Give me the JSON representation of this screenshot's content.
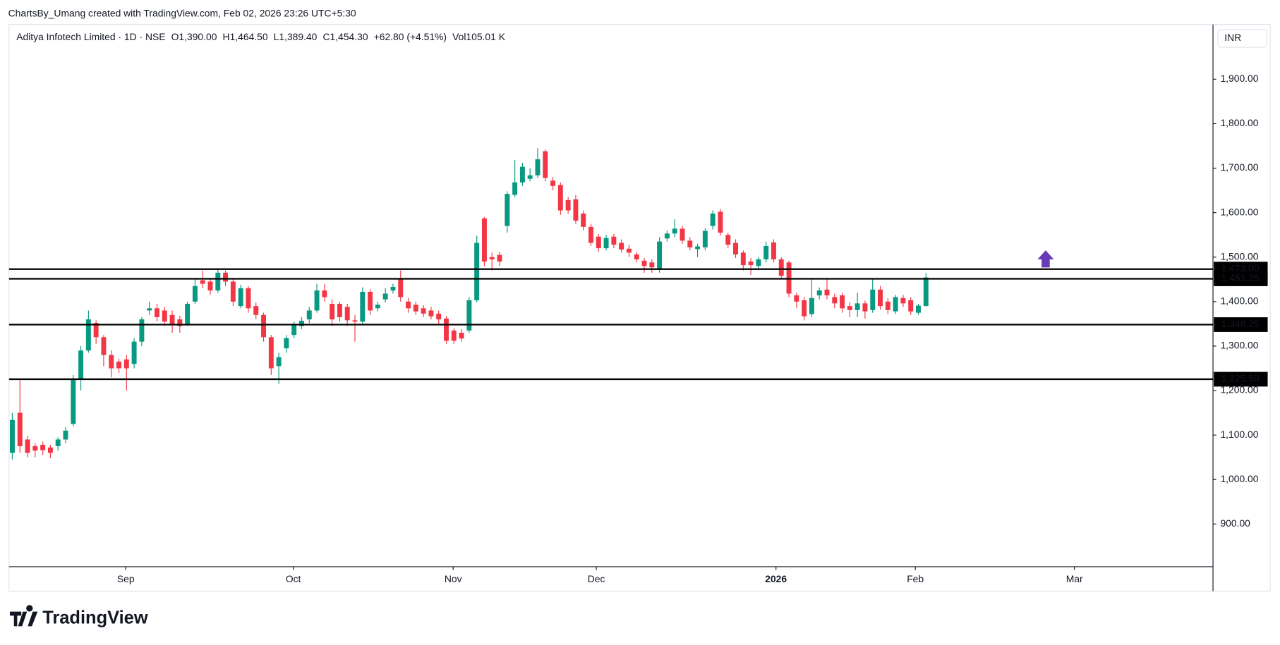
{
  "watermark": "ChartsBy_Umang created with TradingView.com, Feb 02, 2026 23:26 UTC+5:30",
  "brand": "TradingView",
  "chart_data": {
    "type": "candlestick",
    "legend": {
      "symbol": "Aditya Infotech Limited · 1D · NSE",
      "o_label": "O",
      "o": "1,390.00",
      "h_label": "H",
      "h": "1,464.50",
      "l_label": "L",
      "l": "1,389.40",
      "c_label": "C",
      "c": "1,454.30",
      "change": "+62.80 (+4.51%)",
      "vol_label": "Vol",
      "vol": "105.01 K"
    },
    "currency": "INR",
    "up_color": "#089981",
    "down_color": "#f23645",
    "open": [
      1060,
      1150,
      1090,
      1075,
      1078,
      1072,
      1075,
      1090,
      1125,
      1225,
      1290,
      1352,
      1320,
      1280,
      1265,
      1270,
      1260,
      1310,
      1380,
      1385,
      1380,
      1370,
      1360,
      1350,
      1400,
      1448,
      1445,
      1425,
      1465,
      1445,
      1390,
      1430,
      1390,
      1370,
      1320,
      1255,
      1295,
      1325,
      1345,
      1360,
      1380,
      1425,
      1395,
      1395,
      1388,
      1358,
      1355,
      1422,
      1385,
      1405,
      1425,
      1450,
      1400,
      1393,
      1385,
      1380,
      1373,
      1362,
      1335,
      1330,
      1335,
      1403,
      1587,
      1500,
      1505,
      1570,
      1640,
      1668,
      1676,
      1684,
      1738,
      1672,
      1662,
      1628,
      1630,
      1598,
      1568,
      1546,
      1520,
      1546,
      1532,
      1519,
      1506,
      1492,
      1488,
      1473,
      1542,
      1553,
      1564,
      1537,
      1518,
      1522,
      1570,
      1602,
      1550,
      1532,
      1510,
      1490,
      1480,
      1495,
      1533,
      1495,
      1488,
      1414,
      1403,
      1372,
      1414,
      1427,
      1410,
      1414,
      1390,
      1381,
      1396,
      1381,
      1427,
      1400,
      1378,
      1408,
      1403,
      1375,
      1390
    ],
    "high": [
      1150,
      1225,
      1098,
      1082,
      1085,
      1078,
      1095,
      1118,
      1235,
      1300,
      1380,
      1358,
      1325,
      1290,
      1272,
      1280,
      1318,
      1365,
      1400,
      1395,
      1388,
      1380,
      1368,
      1400,
      1450,
      1470,
      1452,
      1472,
      1470,
      1450,
      1438,
      1435,
      1398,
      1375,
      1325,
      1285,
      1325,
      1355,
      1365,
      1388,
      1440,
      1440,
      1405,
      1400,
      1395,
      1370,
      1432,
      1428,
      1400,
      1430,
      1440,
      1470,
      1408,
      1400,
      1392,
      1388,
      1380,
      1368,
      1340,
      1338,
      1410,
      1548,
      1590,
      1510,
      1512,
      1648,
      1718,
      1712,
      1700,
      1745,
      1742,
      1680,
      1668,
      1635,
      1640,
      1605,
      1575,
      1552,
      1550,
      1552,
      1540,
      1528,
      1512,
      1498,
      1495,
      1545,
      1560,
      1585,
      1570,
      1545,
      1530,
      1565,
      1605,
      1608,
      1555,
      1540,
      1515,
      1498,
      1500,
      1535,
      1540,
      1500,
      1492,
      1420,
      1410,
      1450,
      1432,
      1450,
      1418,
      1420,
      1398,
      1420,
      1402,
      1450,
      1435,
      1408,
      1415,
      1415,
      1410,
      1395,
      1464.5
    ],
    "low": [
      1045,
      1060,
      1050,
      1050,
      1055,
      1048,
      1065,
      1082,
      1120,
      1200,
      1285,
      1305,
      1255,
      1230,
      1240,
      1200,
      1250,
      1300,
      1370,
      1355,
      1345,
      1330,
      1330,
      1345,
      1395,
      1430,
      1415,
      1420,
      1435,
      1390,
      1385,
      1375,
      1360,
      1310,
      1235,
      1215,
      1285,
      1318,
      1338,
      1352,
      1375,
      1400,
      1345,
      1355,
      1345,
      1310,
      1350,
      1370,
      1378,
      1398,
      1418,
      1400,
      1375,
      1370,
      1365,
      1360,
      1350,
      1305,
      1305,
      1310,
      1330,
      1398,
      1480,
      1470,
      1480,
      1555,
      1635,
      1660,
      1670,
      1678,
      1670,
      1650,
      1595,
      1598,
      1575,
      1560,
      1525,
      1512,
      1515,
      1520,
      1510,
      1500,
      1488,
      1465,
      1465,
      1465,
      1535,
      1545,
      1530,
      1515,
      1500,
      1515,
      1562,
      1548,
      1520,
      1498,
      1470,
      1460,
      1475,
      1488,
      1488,
      1450,
      1410,
      1385,
      1358,
      1365,
      1405,
      1405,
      1385,
      1375,
      1365,
      1365,
      1362,
      1375,
      1382,
      1372,
      1372,
      1388,
      1370,
      1370,
      1389.4
    ],
    "close": [
      1134,
      1075,
      1060,
      1065,
      1066,
      1060,
      1090,
      1110,
      1225,
      1290,
      1360,
      1320,
      1280,
      1250,
      1250,
      1250,
      1310,
      1360,
      1385,
      1365,
      1355,
      1350,
      1345,
      1395,
      1435,
      1440,
      1425,
      1465,
      1445,
      1400,
      1430,
      1385,
      1370,
      1320,
      1250,
      1275,
      1318,
      1348,
      1357,
      1380,
      1425,
      1410,
      1360,
      1365,
      1358,
      1355,
      1422,
      1380,
      1393,
      1418,
      1433,
      1410,
      1385,
      1378,
      1373,
      1367,
      1360,
      1312,
      1312,
      1317,
      1403,
      1532,
      1490,
      1495,
      1490,
      1642,
      1668,
      1703,
      1684,
      1720,
      1678,
      1660,
      1605,
      1605,
      1582,
      1568,
      1532,
      1520,
      1543,
      1528,
      1517,
      1510,
      1495,
      1480,
      1477,
      1535,
      1553,
      1564,
      1537,
      1522,
      1524,
      1559,
      1598,
      1555,
      1528,
      1506,
      1482,
      1482,
      1495,
      1525,
      1495,
      1458,
      1418,
      1400,
      1367,
      1408,
      1425,
      1414,
      1396,
      1385,
      1381,
      1396,
      1378,
      1427,
      1390,
      1381,
      1410,
      1396,
      1378,
      1391,
      1454.3
    ],
    "last_price": {
      "value": 1454.3,
      "label": "1,454.30"
    },
    "levels": [
      {
        "value": 1473,
        "label": "1,473.00"
      },
      {
        "value": 1451.25,
        "label": "1,451.25"
      },
      {
        "value": 1348.25,
        "label": "1,348.25"
      },
      {
        "value": 1225.5,
        "label": "1,225.50"
      }
    ],
    "xlim": [
      -0.43,
      157.7
    ],
    "xticks": [
      {
        "value": 14.9,
        "label": "Sep"
      },
      {
        "value": 36.9,
        "label": "Oct"
      },
      {
        "value": 57.9,
        "label": "Nov"
      },
      {
        "value": 76.7,
        "label": "Dec"
      },
      {
        "value": 100.3,
        "label": "2026"
      },
      {
        "value": 118.6,
        "label": "Feb"
      },
      {
        "value": 139.5,
        "label": "Mar"
      }
    ],
    "ylim": [
      804,
      2023
    ],
    "yticks": [
      {
        "value": 900,
        "label": "900.00"
      },
      {
        "value": 1000,
        "label": "1,000.00"
      },
      {
        "value": 1100,
        "label": "1,100.00"
      },
      {
        "value": 1200,
        "label": "1,200.00"
      },
      {
        "value": 1300,
        "label": "1,300.00"
      },
      {
        "value": 1400,
        "label": "1,400.00"
      },
      {
        "value": 1500,
        "label": "1,500.00"
      },
      {
        "value": 1600,
        "label": "1,600.00"
      },
      {
        "value": 1700,
        "label": "1,700.00"
      },
      {
        "value": 1800,
        "label": "1,800.00"
      },
      {
        "value": 1900,
        "label": "1,900.00"
      }
    ]
  }
}
